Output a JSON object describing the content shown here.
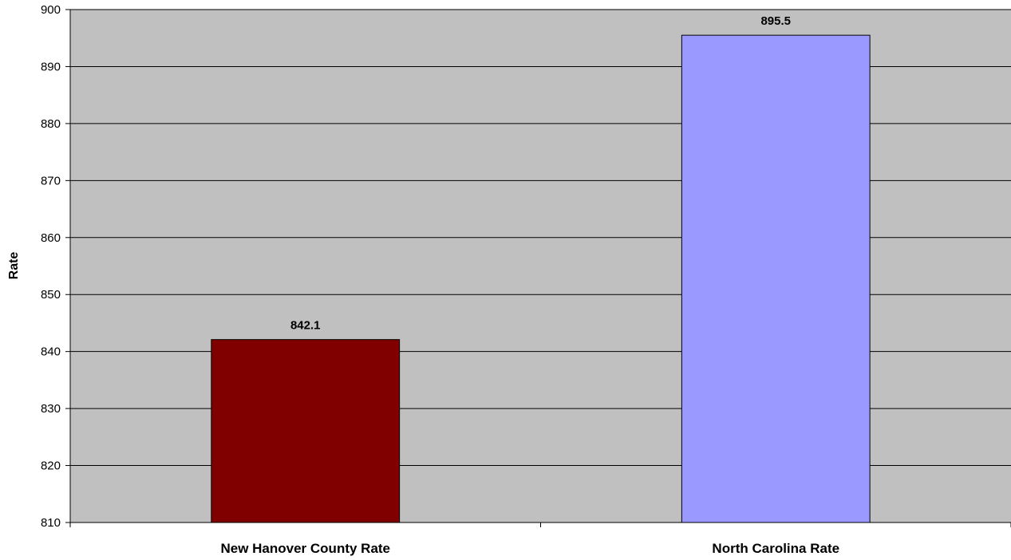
{
  "chart_data": {
    "type": "bar",
    "title": "",
    "xlabel": "",
    "ylabel": "Rate",
    "categories": [
      "New Hanover County Rate",
      "North Carolina Rate"
    ],
    "values": [
      842.1,
      895.5
    ],
    "data_labels": [
      "842.1",
      "895.5"
    ],
    "ylim": [
      810,
      900
    ],
    "yticks": [
      810,
      820,
      830,
      840,
      850,
      860,
      870,
      880,
      890,
      900
    ],
    "grid": true,
    "legend": "none",
    "colors": {
      "plot_background": "#c0c0c0",
      "gridline": "#000000",
      "bars": [
        "#800000",
        "#9999ff"
      ],
      "bar_outline": "#000000"
    }
  }
}
